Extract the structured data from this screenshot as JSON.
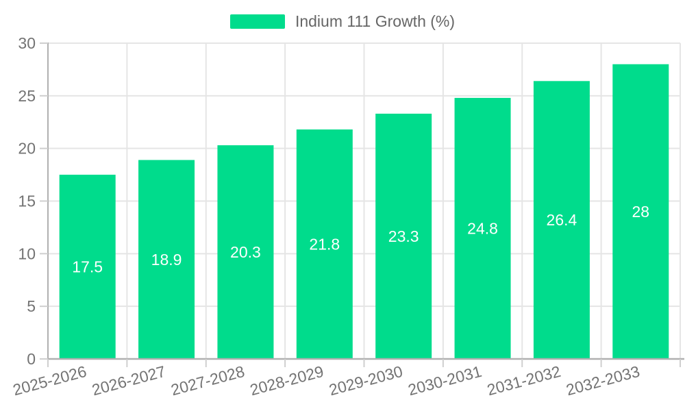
{
  "legend": {
    "position": "top",
    "items": [
      {
        "label": "Indium 111 Growth (%)",
        "color": "#00DC8C"
      }
    ]
  },
  "chart_data": {
    "type": "bar",
    "title": "Indium 111 Growth (%)",
    "categories": [
      "2025-2026",
      "2026-2027",
      "2027-2028",
      "2028-2029",
      "2029-2030",
      "2030-2031",
      "2031-2032",
      "2032-2033"
    ],
    "series": [
      {
        "name": "Indium 111 Growth (%)",
        "color": "#00DC8C",
        "values": [
          17.5,
          18.9,
          20.3,
          21.8,
          23.3,
          24.8,
          26.4,
          28
        ]
      }
    ],
    "xlabel": "",
    "ylabel": "",
    "ylim": [
      0,
      30
    ],
    "yticks": [
      0,
      5,
      10,
      15,
      20,
      25,
      30
    ],
    "grid": true,
    "legend_position": "top",
    "x_label_rotation_deg": -15,
    "data_labels_inside_bars": true,
    "colors": {
      "bar": "#00DC8C",
      "data_label": "#FFFFFF",
      "axis_label": "#737373",
      "legend_text": "#666666",
      "grid": "#E5E5E5",
      "tick": "#CFCFCF",
      "axis_line": "#B0B0B0",
      "background": "#FFFFFF"
    }
  }
}
